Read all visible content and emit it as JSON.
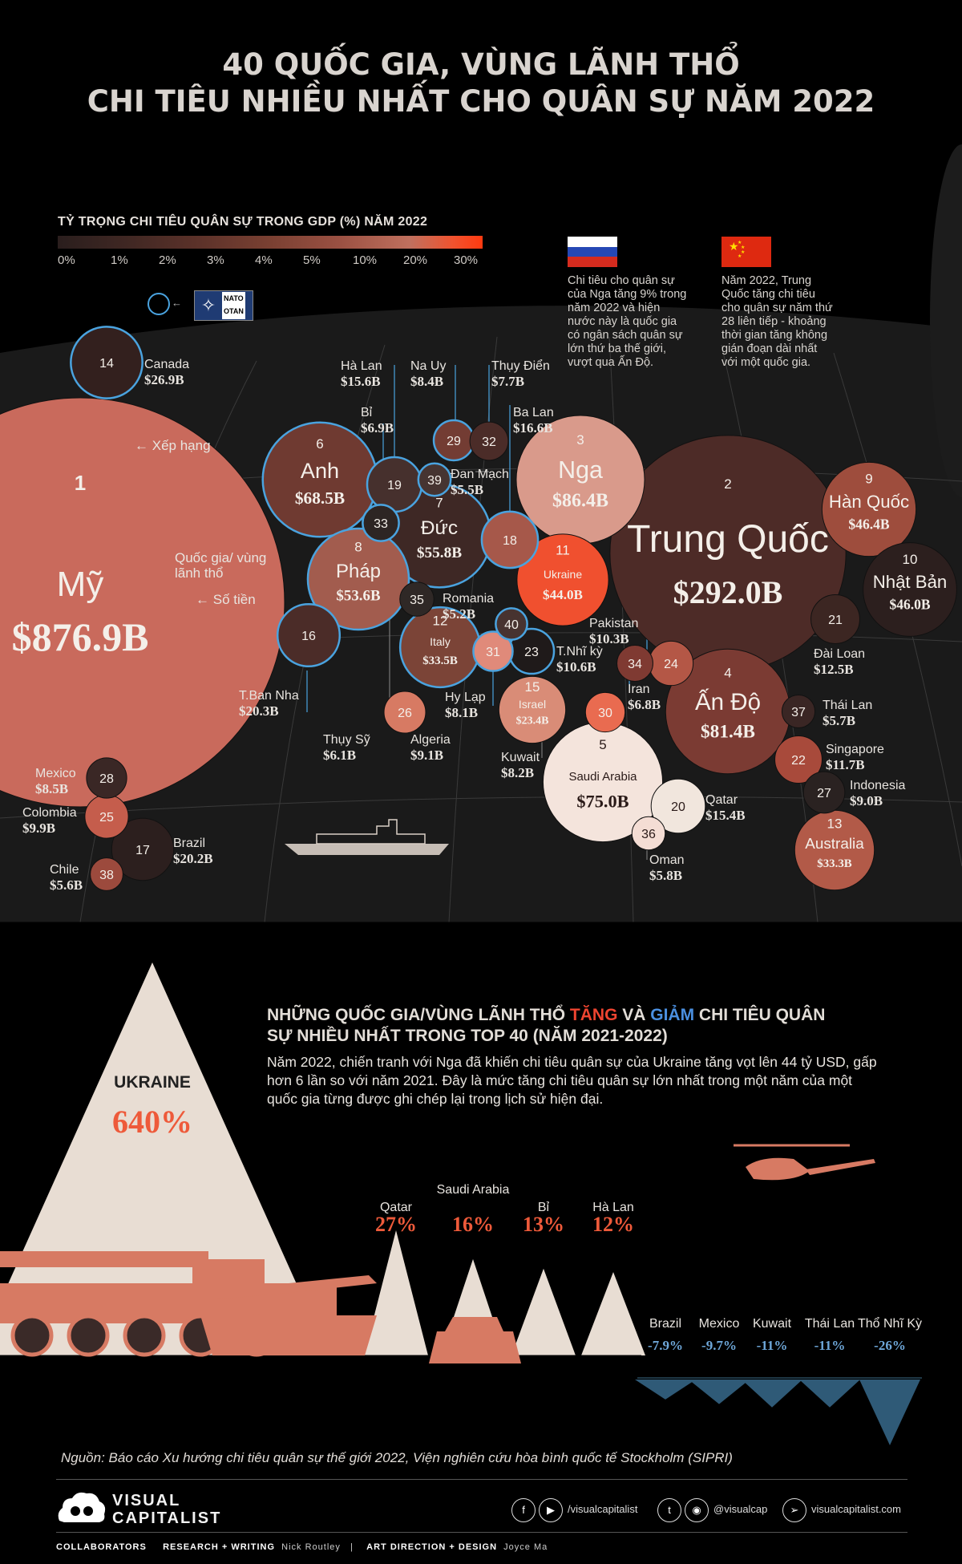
{
  "title": {
    "line1": "40 QUỐC GIA, VÙNG LÃNH THỔ",
    "line2": "CHI TIÊU NHIỀU NHẤT CHO QUÂN SỰ NĂM 2022"
  },
  "legend": {
    "title": "TỶ TRỌNG CHI TIÊU QUÂN SỰ TRONG GDP (%) NĂM 2022",
    "ticks": [
      "0%",
      "1%",
      "2%",
      "3%",
      "4%",
      "5%",
      "10%",
      "20%",
      "30%"
    ],
    "nato_text": "NATO\nOTAN"
  },
  "notes": {
    "russia": "Chi tiêu cho quân sự của Nga tăng 9% trong năm 2022 và hiện nước này là quốc gia có ngân sách quân sự lớn thứ ba thế giới, vượt qua Ấn Độ.",
    "china": "Năm 2022, Trung Quốc tăng chi tiêu cho quân sự năm thứ 28 liên tiếp - khoảng thời gian tăng không gián đoạn dài nhất với một quốc gia."
  },
  "annotations": {
    "rank": "Xếp hạng",
    "country": "Quốc gia/ vùng lãnh thổ",
    "amount": "Số tiền"
  },
  "chart_data": [
    {
      "type": "bubble",
      "title": "40 QUỐC GIA, VÙNG LÃNH THỔ CHI TIÊU NHIỀU NHẤT CHO QUÂN SỰ NĂM 2022",
      "color_scale": "Tỷ trọng chi tiêu quân sự trong GDP (%) năm 2022",
      "colors": {
        "nato_ring": "#4aa3df",
        "max": "#ff3a10"
      },
      "series": [
        {
          "rank": 1,
          "name": "Mỹ",
          "value": 876.9,
          "label": "$876.9B",
          "nato": false
        },
        {
          "rank": 2,
          "name": "Trung Quốc",
          "value": 292.0,
          "label": "$292.0B",
          "nato": false
        },
        {
          "rank": 3,
          "name": "Nga",
          "value": 86.4,
          "label": "$86.4B",
          "nato": false
        },
        {
          "rank": 4,
          "name": "Ấn Độ",
          "value": 81.4,
          "label": "$81.4B",
          "nato": false
        },
        {
          "rank": 5,
          "name": "Saudi Arabia",
          "value": 75.0,
          "label": "$75.0B",
          "nato": false
        },
        {
          "rank": 6,
          "name": "Anh",
          "value": 68.5,
          "label": "$68.5B",
          "nato": true
        },
        {
          "rank": 7,
          "name": "Đức",
          "value": 55.8,
          "label": "$55.8B",
          "nato": true
        },
        {
          "rank": 8,
          "name": "Pháp",
          "value": 53.6,
          "label": "$53.6B",
          "nato": true
        },
        {
          "rank": 9,
          "name": "Hàn Quốc",
          "value": 46.4,
          "label": "$46.4B",
          "nato": false
        },
        {
          "rank": 10,
          "name": "Nhật Bản",
          "value": 46.0,
          "label": "$46.0B",
          "nato": false
        },
        {
          "rank": 11,
          "name": "Ukraine",
          "value": 44.0,
          "label": "$44.0B",
          "nato": false
        },
        {
          "rank": 12,
          "name": "Italy",
          "value": 33.5,
          "label": "$33.5B",
          "nato": true
        },
        {
          "rank": 13,
          "name": "Australia",
          "value": 33.3,
          "label": "$33.3B",
          "nato": false
        },
        {
          "rank": 14,
          "name": "Canada",
          "value": 26.9,
          "label": "$26.9B",
          "nato": true
        },
        {
          "rank": 15,
          "name": "Israel",
          "value": 23.4,
          "label": "$23.4B",
          "nato": false
        },
        {
          "rank": 16,
          "name": "T.Ban Nha",
          "value": 20.3,
          "label": "$20.3B",
          "nato": true
        },
        {
          "rank": 17,
          "name": "Brazil",
          "value": 20.2,
          "label": "$20.2B",
          "nato": false
        },
        {
          "rank": 18,
          "name": "Ba Lan",
          "value": 16.6,
          "label": "$16.6B",
          "nato": true
        },
        {
          "rank": 19,
          "name": "Hà Lan",
          "value": 15.6,
          "label": "$15.6B",
          "nato": true
        },
        {
          "rank": 20,
          "name": "Qatar",
          "value": 15.4,
          "label": "$15.4B",
          "nato": false
        },
        {
          "rank": 21,
          "name": "Đài Loan",
          "value": 12.5,
          "label": "$12.5B",
          "nato": false
        },
        {
          "rank": 22,
          "name": "Singapore",
          "value": 11.7,
          "label": "$11.7B",
          "nato": false
        },
        {
          "rank": 23,
          "name": "T.Nhĩ kỳ",
          "value": 10.6,
          "label": "$10.6B",
          "nato": true
        },
        {
          "rank": 24,
          "name": "Pakistan",
          "value": 10.3,
          "label": "$10.3B",
          "nato": false
        },
        {
          "rank": 25,
          "name": "Colombia",
          "value": 9.9,
          "label": "$9.9B",
          "nato": false
        },
        {
          "rank": 26,
          "name": "Algeria",
          "value": 9.1,
          "label": "$9.1B",
          "nato": false
        },
        {
          "rank": 27,
          "name": "Indonesia",
          "value": 9.0,
          "label": "$9.0B",
          "nato": false
        },
        {
          "rank": 28,
          "name": "Mexico",
          "value": 8.5,
          "label": "$8.5B",
          "nato": false
        },
        {
          "rank": 29,
          "name": "Na Uy",
          "value": 8.4,
          "label": "$8.4B",
          "nato": true
        },
        {
          "rank": 30,
          "name": "Kuwait",
          "value": 8.2,
          "label": "$8.2B",
          "nato": false
        },
        {
          "rank": 31,
          "name": "Hy Lạp",
          "value": 8.1,
          "label": "$8.1B",
          "nato": true
        },
        {
          "rank": 32,
          "name": "Thụy Điển",
          "value": 7.7,
          "label": "$7.7B",
          "nato": false
        },
        {
          "rank": 33,
          "name": "Bỉ",
          "value": 6.9,
          "label": "$6.9B",
          "nato": true
        },
        {
          "rank": 34,
          "name": "Iran",
          "value": 6.8,
          "label": "$6.8B",
          "nato": false
        },
        {
          "rank": 35,
          "name": "Thụy Sỹ",
          "value": 6.1,
          "label": "$6.1B",
          "nato": false
        },
        {
          "rank": 36,
          "name": "Oman",
          "value": 5.8,
          "label": "$5.8B",
          "nato": false
        },
        {
          "rank": 37,
          "name": "Thái Lan",
          "value": 5.7,
          "label": "$5.7B",
          "nato": false
        },
        {
          "rank": 38,
          "name": "Chile",
          "value": 5.6,
          "label": "$5.6B",
          "nato": false
        },
        {
          "rank": 39,
          "name": "Đan Mạch",
          "value": 5.5,
          "label": "$5.5B",
          "nato": true
        },
        {
          "rank": 40,
          "name": "Romania",
          "value": 5.2,
          "label": "$5.2B",
          "nato": true
        }
      ]
    },
    {
      "type": "bar",
      "title": "NHỮNG QUỐC GIA/VÙNG LÃNH THỔ TĂNG VÀ GIẢM CHI TIÊU QUÂN SỰ NHIỀU NHẤT TRONG TOP 40 (NĂM 2021-2022)",
      "categories": [
        "Ukraine",
        "Qatar",
        "Saudi Arabia",
        "Bỉ",
        "Hà Lan",
        "Brazil",
        "Mexico",
        "Kuwait",
        "Thái Lan",
        "Thổ Nhĩ Kỳ"
      ],
      "values": [
        640,
        27,
        16,
        13,
        12,
        -7.9,
        -9.7,
        -11,
        -11,
        -26
      ],
      "unit": "%",
      "colors": {
        "increase": "#ee5a3a",
        "decrease": "#6ea7d9"
      }
    }
  ],
  "changes": {
    "heading_pre": "NHỮNG QUỐC GIA/VÙNG LÃNH THỔ ",
    "heading_up": "TĂNG",
    "heading_mid": " VÀ ",
    "heading_down": "GIẢM",
    "heading_post": " CHI TIÊU QUÂN SỰ NHIỀU NHẤT TRONG TOP 40 (NĂM 2021-2022)",
    "body": "Năm 2022, chiến tranh với Nga đã khiến chi tiêu quân sự của Ukraine tăng vọt lên 44 tỷ USD, gấp hơn 6 lần so với năm 2021. Đây là mức tăng chi tiêu quân sự lớn nhất trong một năm của một quốc gia từng được ghi chép lại trong lịch sử hiện đại.",
    "increases": [
      {
        "name": "UKRAINE",
        "value": "640%"
      },
      {
        "name": "Qatar",
        "value": "27%"
      },
      {
        "name": "Saudi Arabia",
        "value": "16%"
      },
      {
        "name": "Bỉ",
        "value": "13%"
      },
      {
        "name": "Hà Lan",
        "value": "12%"
      }
    ],
    "decreases": [
      {
        "name": "Brazil",
        "value": "-7.9%"
      },
      {
        "name": "Mexico",
        "value": "-9.7%"
      },
      {
        "name": "Kuwait",
        "value": "-11%"
      },
      {
        "name": "Thái Lan",
        "value": "-11%"
      },
      {
        "name": "Thổ Nhĩ Kỳ",
        "value": "-26%"
      }
    ]
  },
  "footer": {
    "source": "Nguồn: Báo cáo Xu hướng chi tiêu quân sự thế giới 2022, Viện nghiên cứu hòa bình quốc tế Stockholm (SIPRI)",
    "brand_line1": "VISUAL",
    "brand_line2": "CAPITALIST",
    "social1": "/visualcapitalist",
    "social2": "@visualcap",
    "social3": "visualcapitalist.com",
    "collab_label": "COLLABORATORS",
    "research_label": "RESEARCH + WRITING",
    "research_name": "Nick Routley",
    "design_label": "ART DIRECTION + DESIGN",
    "design_name": "Joyce Ma"
  }
}
